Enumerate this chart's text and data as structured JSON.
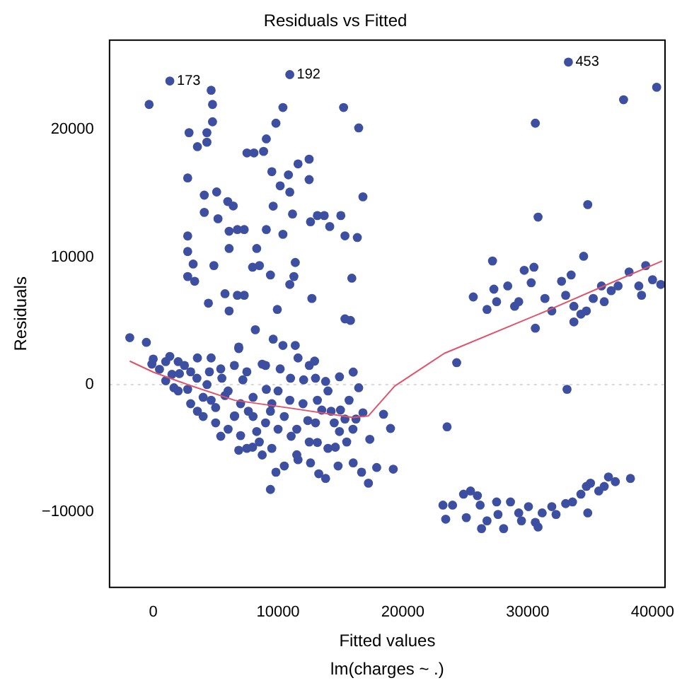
{
  "chart_data": {
    "type": "scatter",
    "title": "Residuals vs Fitted",
    "subtitle": "lm(charges ~ .)",
    "xlabel": "Fitted values",
    "ylabel": "Residuals",
    "xlim": [
      -3500,
      41000
    ],
    "ylim": [
      -15900,
      27000
    ],
    "xticks": [
      0,
      10000,
      20000,
      30000,
      40000
    ],
    "yticks": [
      -10000,
      0,
      10000,
      20000
    ],
    "marker": "circle",
    "ref_lines": [
      {
        "axis": "y",
        "value": 0,
        "color": "#d9d9d9",
        "line_style": "dotted"
      }
    ],
    "annotations": [
      {
        "text": "173",
        "x": 1330,
        "y": 23800
      },
      {
        "text": "192",
        "x": 10940,
        "y": 24300
      },
      {
        "text": "453",
        "x": 33260,
        "y": 25280
      }
    ],
    "series": [
      {
        "color": "#3c4fa0",
        "x": [
          0,
          500,
          1000,
          1500,
          2000,
          2500,
          3000,
          3000,
          3500,
          4000,
          4500,
          5000,
          5000,
          5500,
          6000,
          6000,
          6500,
          7000,
          7000,
          7500,
          8000,
          8000,
          8500,
          9000,
          9000,
          9500,
          10000,
          10000,
          10500,
          11000,
          11500,
          12000,
          12500,
          13000,
          13000,
          13500,
          14000,
          14000,
          14500,
          15000,
          15500,
          16000,
          11500,
          9500,
          7500,
          4000,
          2000,
          1000,
          6500,
          12500,
          1330,
          -330,
          4640,
          4750,
          4750,
          2870,
          4300,
          3540,
          4300,
          2760,
          4090,
          5080,
          4090,
          5190,
          5970,
          6410,
          2760,
          2760,
          3200,
          2760,
          3320,
          4860,
          4420,
          5750,
          6080,
          6740,
          7290,
          6080,
          6740,
          7290,
          6080,
          8290,
          7960,
          8510,
          9390,
          8180,
          6850,
          7510,
          8070,
          8840,
          9060,
          9830,
          10390,
          10940,
          9500,
          10170,
          10830,
          10940,
          11600,
          12490,
          12490,
          9610,
          9060,
          10390,
          11160,
          12600,
          13150,
          13700,
          14140,
          15030,
          15360,
          11380,
          10940,
          11270,
          12710,
          9940,
          15910,
          15250,
          16460,
          15360,
          15800,
          16350,
          16800,
          33260,
          30610,
          37680,
          40330,
          30830,
          34810,
          27180,
          34480,
          29720,
          30500,
          32710,
          33480,
          30610,
          25640,
          26740,
          27290,
          28400,
          29280,
          30280,
          31380,
          31930,
          33040,
          33700,
          34260,
          35250,
          36130,
          36690,
          37240,
          38120,
          38900,
          39450,
          40000,
          40660,
          39120,
          35910,
          33700,
          34700,
          27510,
          28950,
          24310,
          33150,
          23540,
          23210,
          23430,
          23980,
          24860,
          25420,
          25970,
          25080,
          26190,
          26740,
          26300,
          27510,
          27620,
          28070,
          28620,
          29280,
          30060,
          30610,
          31160,
          31930,
          32270,
          33040,
          33590,
          34260,
          34810,
          34700,
          35030,
          35690,
          36130,
          36470,
          37020,
          38230,
          30830,
          29500,
          16800,
          18450,
          19010,
          17350,
          17900,
          19230,
          17240,
          -1880,
          -550,
          1330,
          3540,
          4640,
          6850,
          9610,
          10390,
          11380,
          12930,
          13810,
          14920,
          16020,
          16460,
          -110,
          1660,
          3540,
          5410,
          6850,
          8730,
          9830,
          9390,
          10500,
          11600,
          12600,
          13260,
          13810,
          14810,
          16020,
          16690,
          2100,
          2760,
          4310,
          4640,
          5750,
          6520,
          7180,
          7620,
          8290,
          9060,
          9390,
          10170,
          10940,
          11050,
          12050,
          12380,
          13150,
          14250,
          14920,
          15690,
          15360,
          16240,
          5410,
          8730,
          11600,
          7960,
          13150,
          14590
        ],
        "values": [
          2000,
          1200,
          1800,
          800,
          -500,
          1500,
          -1500,
          1000,
          500,
          -2500,
          1000,
          -3000,
          -1800,
          500,
          -3500,
          -500,
          1500,
          -1500,
          -4000,
          1000,
          -2500,
          -1000,
          -4500,
          -3000,
          1500,
          -5000,
          -3500,
          -500,
          -2500,
          500,
          -3500,
          -1500,
          -4500,
          -3000,
          500,
          -2000,
          -5000,
          -500,
          -3000,
          -2000,
          -4500,
          -3500,
          -5500,
          -1500,
          -5000,
          -1000,
          1800,
          300,
          -2500,
          1500,
          23800,
          21960,
          23070,
          21960,
          20600,
          19750,
          19750,
          18650,
          19000,
          16200,
          14850,
          15100,
          13500,
          13000,
          14350,
          14000,
          11650,
          10430,
          9450,
          8470,
          8100,
          9330,
          6380,
          7120,
          5770,
          7000,
          7000,
          12020,
          12150,
          12150,
          10670,
          10670,
          9200,
          9330,
          8590,
          4300,
          2820,
          18160,
          18160,
          18280,
          19260,
          20490,
          21720,
          24300,
          16690,
          15580,
          16440,
          15090,
          17300,
          17670,
          16070,
          13990,
          12150,
          11780,
          13370,
          12760,
          13250,
          13250,
          12390,
          13250,
          11660,
          9570,
          7850,
          8470,
          6750,
          5890,
          8340,
          21720,
          20120,
          5150,
          5030,
          11530,
          14720,
          25280,
          20490,
          22330,
          23310,
          13130,
          14110,
          9690,
          10060,
          8960,
          9200,
          8100,
          8590,
          4420,
          6870,
          5890,
          7480,
          7730,
          6500,
          7980,
          6750,
          5770,
          7000,
          6140,
          5520,
          6750,
          6500,
          7360,
          7730,
          8830,
          7730,
          9330,
          8220,
          7850,
          7000,
          7730,
          4910,
          5770,
          6500,
          6140,
          1720,
          -370,
          -3310,
          -9450,
          -10550,
          -9450,
          -8590,
          -8340,
          -8710,
          -10430,
          -9450,
          -10680,
          -11290,
          -9200,
          -10180,
          -11290,
          -9200,
          -10060,
          -9570,
          -10800,
          -10060,
          -9570,
          -10180,
          -9330,
          -9200,
          -8590,
          -10060,
          -7980,
          -7730,
          -8340,
          -7980,
          -7240,
          -7610,
          -7360,
          -11170,
          -10680,
          -2210,
          -2330,
          -3440,
          -4290,
          -6500,
          -6630,
          -7730,
          3680,
          3310,
          2210,
          2090,
          2090,
          2940,
          3560,
          3070,
          3070,
          1840,
          250,
          610,
          980,
          -250,
          1600,
          -250,
          -2090,
          -4050,
          -5150,
          -5520,
          -6870,
          -8220,
          -6380,
          -5890,
          -6140,
          -6990,
          -7360,
          -6380,
          -6140,
          -6870,
          860,
          -370,
          0,
          -1230,
          -860,
          -2450,
          370,
          -2090,
          -3680,
          -370,
          -2090,
          1230,
          -1230,
          -4050,
          370,
          -2820,
          -1230,
          -2090,
          -3680,
          -1230,
          -2700,
          -2700,
          1230,
          1600,
          2090,
          -4910,
          -4540,
          -4910
        ]
      },
      {
        "type": "line",
        "marker": "none",
        "color": "#df536b",
        "x": [
          -1880,
          0,
          2760,
          6520,
          10940,
          16020,
          17240,
          19340,
          23320,
          31490,
          36690,
          40770
        ],
        "values": [
          1840,
          980,
          0,
          -1230,
          -1840,
          -2580,
          -2450,
          -120,
          2450,
          5770,
          7980,
          9690
        ]
      }
    ]
  }
}
